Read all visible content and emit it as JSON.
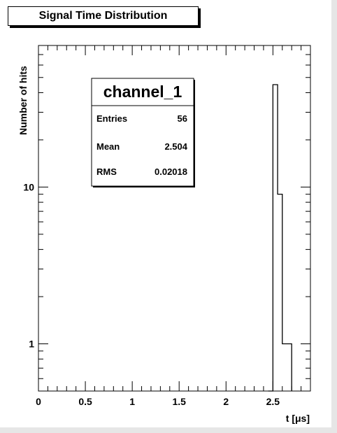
{
  "title": "Signal Time Distribution",
  "stats_box": {
    "name": "channel_1",
    "rows": [
      {
        "label": "Entries",
        "value": "56"
      },
      {
        "label": "Mean",
        "value": "2.504"
      },
      {
        "label": "RMS",
        "value": "0.02018"
      }
    ]
  },
  "chart_data": {
    "type": "bar",
    "title": "Signal Time Distribution",
    "xlabel": "t [μs]",
    "ylabel": "Number of hits",
    "yscale": "log",
    "xlim": [
      0,
      2.9
    ],
    "ylim": [
      0.5,
      80
    ],
    "grid": false,
    "x_ticks": [
      "0",
      "0.5",
      "1",
      "1.5",
      "2",
      "2.5"
    ],
    "y_ticks": [
      "1",
      "10"
    ],
    "bins": [
      {
        "x_low": 2.45,
        "x_high": 2.5,
        "count": 0
      },
      {
        "x_low": 2.5,
        "x_high": 2.55,
        "count": 45
      },
      {
        "x_low": 2.55,
        "x_high": 2.6,
        "count": 9
      },
      {
        "x_low": 2.6,
        "x_high": 2.7,
        "count": 1
      }
    ]
  },
  "colors": {
    "axis": "#000000",
    "background": "#ffffff",
    "frame_edge": "#e0e0e0"
  }
}
